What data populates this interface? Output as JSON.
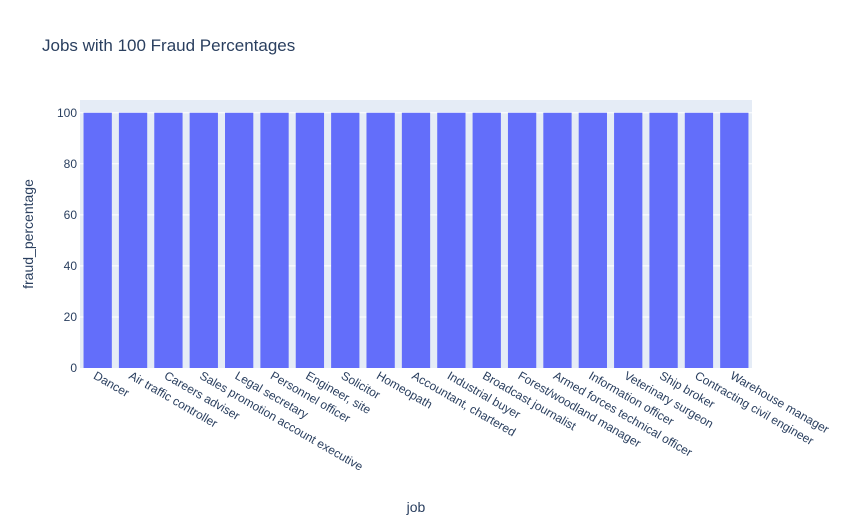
{
  "chart_data": {
    "type": "bar",
    "title": "Jobs with 100 Fraud Percentages",
    "xlabel": "job",
    "ylabel": "fraud_percentage",
    "ylim": [
      0,
      105
    ],
    "yticks": [
      0,
      20,
      40,
      60,
      80,
      100
    ],
    "grid": true,
    "legend": "none",
    "categories": [
      "Dancer",
      "Air traffic controller",
      "Careers adviser",
      "Sales promotion account executive",
      "Legal secretary",
      "Personnel officer",
      "Engineer, site",
      "Solicitor",
      "Homeopath",
      "Accountant, chartered",
      "Industrial buyer",
      "Broadcast journalist",
      "Forest/woodland manager",
      "Armed forces technical officer",
      "Information officer",
      "Veterinary surgeon",
      "Ship broker",
      "Contracting civil engineer",
      "Warehouse manager"
    ],
    "values": [
      100,
      100,
      100,
      100,
      100,
      100,
      100,
      100,
      100,
      100,
      100,
      100,
      100,
      100,
      100,
      100,
      100,
      100,
      100
    ],
    "colors": {
      "bar": "#636efa",
      "plot_bg": "#e5ecf6",
      "grid": "#ffffff",
      "text": "#2a3f5f"
    }
  }
}
